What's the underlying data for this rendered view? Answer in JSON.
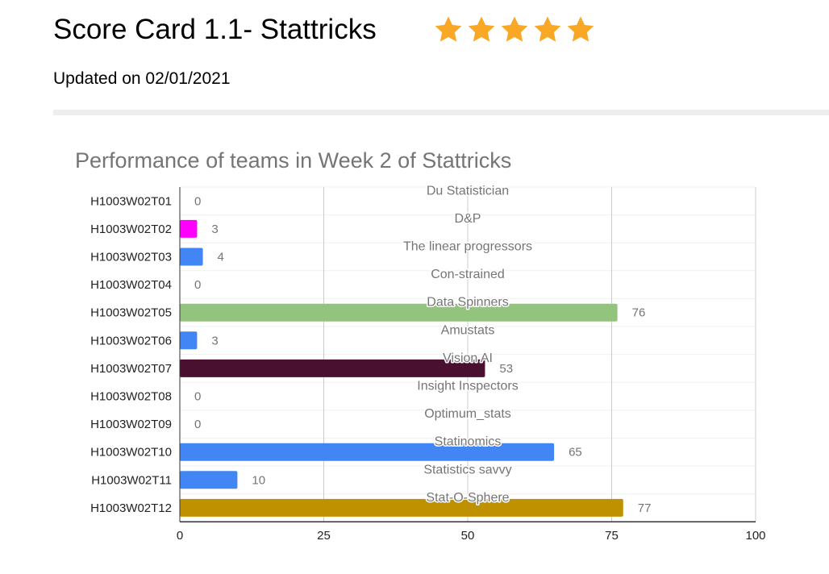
{
  "header": {
    "title": "Score Card 1.1- Stattricks",
    "rating": 5,
    "star_color": "#f9a825",
    "updated": "Updated on 02/01/2021"
  },
  "chart_data": {
    "type": "bar",
    "orientation": "horizontal",
    "title": "Performance of teams in Week 2 of Stattricks",
    "categories": [
      "H1003W02T01",
      "H1003W02T02",
      "H1003W02T03",
      "H1003W02T04",
      "H1003W02T05",
      "H1003W02T06",
      "H1003W02T07",
      "H1003W02T08",
      "H1003W02T09",
      "H1003W02T10",
      "H1003W02T11",
      "H1003W02T12"
    ],
    "values": [
      0,
      3,
      4,
      0,
      76,
      3,
      53,
      0,
      0,
      65,
      10,
      77
    ],
    "bar_colors": [
      "#4285f4",
      "#ff00ff",
      "#4285f4",
      "#4285f4",
      "#93c47d",
      "#4285f4",
      "#4a1030",
      "#4285f4",
      "#4285f4",
      "#4285f4",
      "#4285f4",
      "#bf9000"
    ],
    "team_names": [
      "Du Statistician",
      "D&P",
      "The linear progressors",
      "Con-strained",
      "Data Spinners",
      "Amustats",
      "Vision AI",
      "Insight Inspectors",
      "Optimum_stats",
      "Statinomics",
      "Statistics savvy",
      "Stat-O-Sphere"
    ],
    "xlim": [
      0,
      100
    ],
    "xticks": [
      0,
      25,
      50,
      75,
      100
    ],
    "grid": true
  }
}
